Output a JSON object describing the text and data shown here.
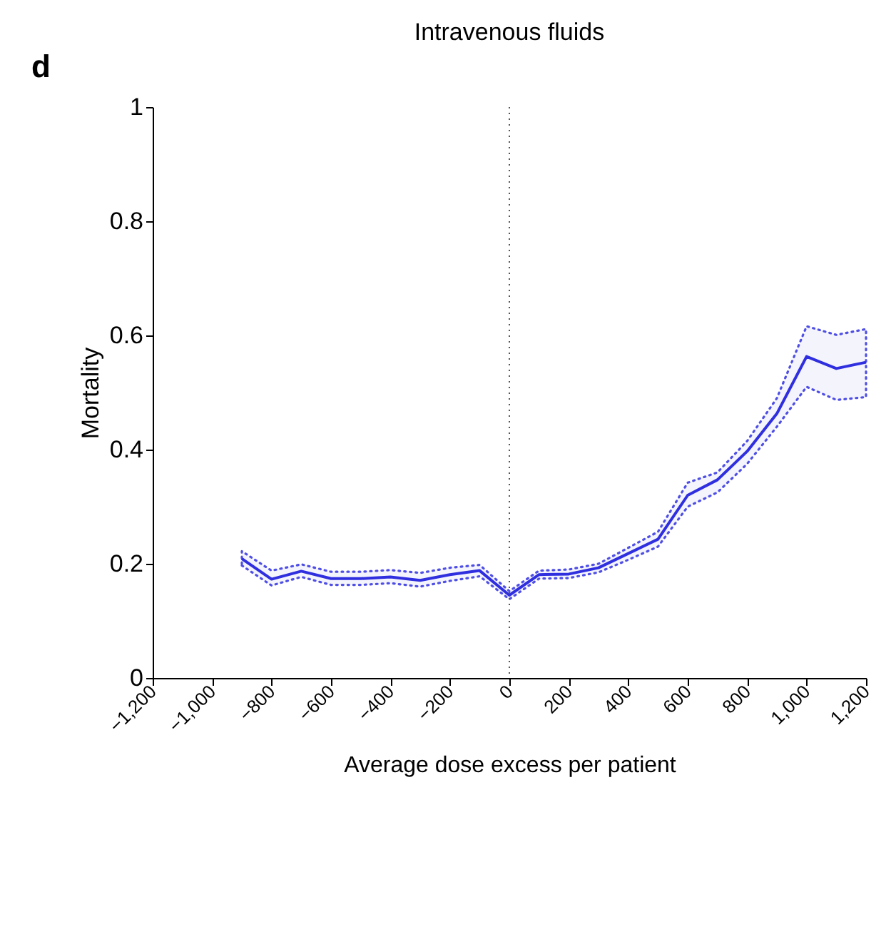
{
  "chart_data": {
    "type": "line",
    "title": "Intravenous fluids",
    "xlabel": "Average dose excess per patient",
    "ylabel": "Mortality",
    "annotations": [
      "d"
    ],
    "x": [
      -900,
      -800,
      -700,
      -600,
      -500,
      -400,
      -300,
      -200,
      -100,
      0,
      100,
      200,
      300,
      400,
      500,
      600,
      700,
      800,
      900,
      1000,
      1100,
      1200
    ],
    "series": [
      {
        "color": "#3030e0",
        "values": [
          0.209,
          0.173,
          0.187,
          0.174,
          0.174,
          0.177,
          0.171,
          0.181,
          0.188,
          0.145,
          0.181,
          0.182,
          0.193,
          0.218,
          0.243,
          0.32,
          0.347,
          0.397,
          0.463,
          0.563,
          0.542,
          0.553
        ],
        "upper": [
          0.222,
          0.188,
          0.199,
          0.186,
          0.186,
          0.189,
          0.184,
          0.193,
          0.198,
          0.152,
          0.188,
          0.19,
          0.2,
          0.228,
          0.256,
          0.342,
          0.36,
          0.415,
          0.49,
          0.616,
          0.601,
          0.611
        ],
        "lower": [
          0.197,
          0.162,
          0.177,
          0.163,
          0.163,
          0.166,
          0.16,
          0.17,
          0.178,
          0.138,
          0.174,
          0.175,
          0.185,
          0.207,
          0.23,
          0.3,
          0.325,
          0.375,
          0.44,
          0.51,
          0.487,
          0.492
        ]
      }
    ],
    "xlim": [
      -1200,
      1200
    ],
    "xticks": [
      {
        "value": -1200,
        "label": "−1,200"
      },
      {
        "value": -1000,
        "label": "−1,000"
      },
      {
        "value": -800,
        "label": "−800"
      },
      {
        "value": -600,
        "label": "−600"
      },
      {
        "value": -400,
        "label": "−400"
      },
      {
        "value": -200,
        "label": "−200"
      },
      0,
      200,
      400,
      600,
      800,
      {
        "value": 1000,
        "label": "1,000"
      },
      {
        "value": 1200,
        "label": "1,200"
      }
    ],
    "ylim": [
      0,
      1
    ],
    "yticks": [
      {
        "value": 0,
        "label": "0"
      },
      0.2,
      0.4,
      0.6,
      0.8,
      {
        "value": 1,
        "label": "1"
      }
    ],
    "ref_lines": [
      {
        "axis": "x",
        "value": 0,
        "color": "#555555",
        "line_style": "dotted"
      }
    ],
    "grid": false,
    "marker": "none",
    "line_style": "solid"
  }
}
